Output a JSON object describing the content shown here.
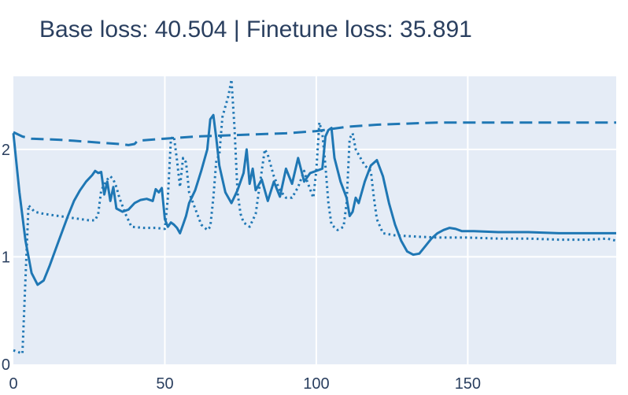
{
  "chart_data": {
    "type": "line",
    "title": "Base loss: 40.504 | Finetune loss: 35.891",
    "xlabel": "",
    "ylabel": "",
    "xlim": [
      0,
      199
    ],
    "ylim": [
      0,
      2.68
    ],
    "x_ticks": [
      0,
      50,
      100,
      150
    ],
    "y_ticks": [
      0,
      1,
      2
    ],
    "grid": true,
    "colors": {
      "line": "#1f77b4",
      "plot_bg": "#e5ecf6",
      "grid": "#ffffff",
      "text": "#2a3f5f"
    },
    "series": [
      {
        "style": "solid",
        "points": [
          [
            0,
            2.15
          ],
          [
            2,
            1.6
          ],
          [
            4,
            1.15
          ],
          [
            6,
            0.85
          ],
          [
            8,
            0.74
          ],
          [
            10,
            0.78
          ],
          [
            12,
            0.92
          ],
          [
            15,
            1.15
          ],
          [
            18,
            1.38
          ],
          [
            20,
            1.52
          ],
          [
            22,
            1.62
          ],
          [
            24,
            1.7
          ],
          [
            26,
            1.76
          ],
          [
            27,
            1.8
          ],
          [
            28,
            1.78
          ],
          [
            29,
            1.79
          ],
          [
            30,
            1.58
          ],
          [
            31,
            1.7
          ],
          [
            32,
            1.52
          ],
          [
            33,
            1.65
          ],
          [
            34,
            1.45
          ],
          [
            36,
            1.42
          ],
          [
            38,
            1.44
          ],
          [
            40,
            1.5
          ],
          [
            42,
            1.53
          ],
          [
            44,
            1.54
          ],
          [
            46,
            1.52
          ],
          [
            47,
            1.63
          ],
          [
            48,
            1.6
          ],
          [
            49,
            1.64
          ],
          [
            50,
            1.35
          ],
          [
            51,
            1.28
          ],
          [
            52,
            1.32
          ],
          [
            53,
            1.3
          ],
          [
            54,
            1.27
          ],
          [
            55,
            1.22
          ],
          [
            56,
            1.3
          ],
          [
            57,
            1.38
          ],
          [
            58,
            1.5
          ],
          [
            60,
            1.62
          ],
          [
            62,
            1.8
          ],
          [
            64,
            2.0
          ],
          [
            65,
            2.28
          ],
          [
            66,
            2.32
          ],
          [
            67,
            2.1
          ],
          [
            68,
            1.85
          ],
          [
            70,
            1.6
          ],
          [
            72,
            1.5
          ],
          [
            74,
            1.62
          ],
          [
            76,
            1.78
          ],
          [
            77,
            2.0
          ],
          [
            78,
            1.68
          ],
          [
            79,
            1.82
          ],
          [
            80,
            1.62
          ],
          [
            82,
            1.72
          ],
          [
            84,
            1.52
          ],
          [
            86,
            1.7
          ],
          [
            88,
            1.56
          ],
          [
            90,
            1.82
          ],
          [
            92,
            1.68
          ],
          [
            94,
            1.92
          ],
          [
            96,
            1.7
          ],
          [
            98,
            1.78
          ],
          [
            100,
            1.8
          ],
          [
            102,
            1.82
          ],
          [
            103,
            2.12
          ],
          [
            104,
            2.18
          ],
          [
            105,
            2.2
          ],
          [
            106,
            1.92
          ],
          [
            108,
            1.7
          ],
          [
            110,
            1.55
          ],
          [
            111,
            1.38
          ],
          [
            112,
            1.42
          ],
          [
            113,
            1.55
          ],
          [
            114,
            1.5
          ],
          [
            116,
            1.7
          ],
          [
            118,
            1.85
          ],
          [
            120,
            1.9
          ],
          [
            122,
            1.75
          ],
          [
            124,
            1.5
          ],
          [
            126,
            1.3
          ],
          [
            128,
            1.15
          ],
          [
            130,
            1.05
          ],
          [
            132,
            1.02
          ],
          [
            134,
            1.03
          ],
          [
            136,
            1.1
          ],
          [
            138,
            1.17
          ],
          [
            140,
            1.22
          ],
          [
            142,
            1.25
          ],
          [
            144,
            1.27
          ],
          [
            146,
            1.26
          ],
          [
            148,
            1.24
          ],
          [
            152,
            1.24
          ],
          [
            160,
            1.23
          ],
          [
            170,
            1.23
          ],
          [
            180,
            1.22
          ],
          [
            190,
            1.22
          ],
          [
            199,
            1.22
          ]
        ]
      },
      {
        "style": "dotted",
        "points": [
          [
            0,
            0.13
          ],
          [
            3,
            0.1
          ],
          [
            5,
            1.48
          ],
          [
            7,
            1.42
          ],
          [
            10,
            1.4
          ],
          [
            15,
            1.38
          ],
          [
            20,
            1.36
          ],
          [
            25,
            1.34
          ],
          [
            27,
            1.34
          ],
          [
            28,
            1.4
          ],
          [
            29,
            1.62
          ],
          [
            31,
            1.72
          ],
          [
            32,
            1.75
          ],
          [
            33,
            1.72
          ],
          [
            34,
            1.65
          ],
          [
            35,
            1.55
          ],
          [
            37,
            1.4
          ],
          [
            39,
            1.28
          ],
          [
            43,
            1.27
          ],
          [
            47,
            1.27
          ],
          [
            50,
            1.26
          ],
          [
            51,
            1.55
          ],
          [
            52,
            2.1
          ],
          [
            53,
            2.12
          ],
          [
            54,
            1.9
          ],
          [
            55,
            1.65
          ],
          [
            56,
            1.92
          ],
          [
            57,
            1.88
          ],
          [
            58,
            1.6
          ],
          [
            60,
            1.45
          ],
          [
            62,
            1.3
          ],
          [
            64,
            1.25
          ],
          [
            65,
            1.28
          ],
          [
            66,
            1.55
          ],
          [
            67,
            1.9
          ],
          [
            68,
            1.95
          ],
          [
            69,
            2.3
          ],
          [
            70,
            2.4
          ],
          [
            71,
            2.5
          ],
          [
            72,
            2.65
          ],
          [
            73,
            2.2
          ],
          [
            74,
            1.6
          ],
          [
            75,
            1.4
          ],
          [
            76,
            1.32
          ],
          [
            78,
            1.28
          ],
          [
            80,
            1.4
          ],
          [
            82,
            1.8
          ],
          [
            83,
            2.0
          ],
          [
            84,
            1.95
          ],
          [
            86,
            1.75
          ],
          [
            88,
            1.62
          ],
          [
            90,
            1.55
          ],
          [
            92,
            1.55
          ],
          [
            94,
            1.65
          ],
          [
            96,
            1.8
          ],
          [
            97,
            1.7
          ],
          [
            99,
            1.55
          ],
          [
            100,
            1.8
          ],
          [
            101,
            2.25
          ],
          [
            102,
            2.15
          ],
          [
            103,
            1.85
          ],
          [
            104,
            1.5
          ],
          [
            105,
            1.3
          ],
          [
            107,
            1.25
          ],
          [
            109,
            1.28
          ],
          [
            110,
            1.5
          ],
          [
            111,
            2.1
          ],
          [
            112,
            2.15
          ],
          [
            113,
            2.0
          ],
          [
            114,
            1.95
          ],
          [
            116,
            1.85
          ],
          [
            118,
            1.8
          ],
          [
            119,
            1.55
          ],
          [
            120,
            1.35
          ],
          [
            122,
            1.22
          ],
          [
            126,
            1.2
          ],
          [
            132,
            1.19
          ],
          [
            140,
            1.18
          ],
          [
            150,
            1.18
          ],
          [
            160,
            1.17
          ],
          [
            170,
            1.17
          ],
          [
            180,
            1.16
          ],
          [
            190,
            1.16
          ],
          [
            196,
            1.17
          ],
          [
            199,
            1.15
          ]
        ]
      },
      {
        "style": "dashed",
        "points": [
          [
            0,
            2.16
          ],
          [
            3,
            2.12
          ],
          [
            6,
            2.1
          ],
          [
            15,
            2.09
          ],
          [
            20,
            2.08
          ],
          [
            25,
            2.07
          ],
          [
            30,
            2.06
          ],
          [
            35,
            2.05
          ],
          [
            38,
            2.04
          ],
          [
            40,
            2.05
          ],
          [
            41,
            2.08
          ],
          [
            50,
            2.1
          ],
          [
            60,
            2.12
          ],
          [
            70,
            2.13
          ],
          [
            80,
            2.14
          ],
          [
            90,
            2.15
          ],
          [
            100,
            2.17
          ],
          [
            105,
            2.19
          ],
          [
            110,
            2.21
          ],
          [
            120,
            2.23
          ],
          [
            130,
            2.24
          ],
          [
            140,
            2.25
          ],
          [
            150,
            2.25
          ],
          [
            160,
            2.25
          ],
          [
            170,
            2.25
          ],
          [
            180,
            2.25
          ],
          [
            199,
            2.25
          ]
        ]
      }
    ]
  }
}
